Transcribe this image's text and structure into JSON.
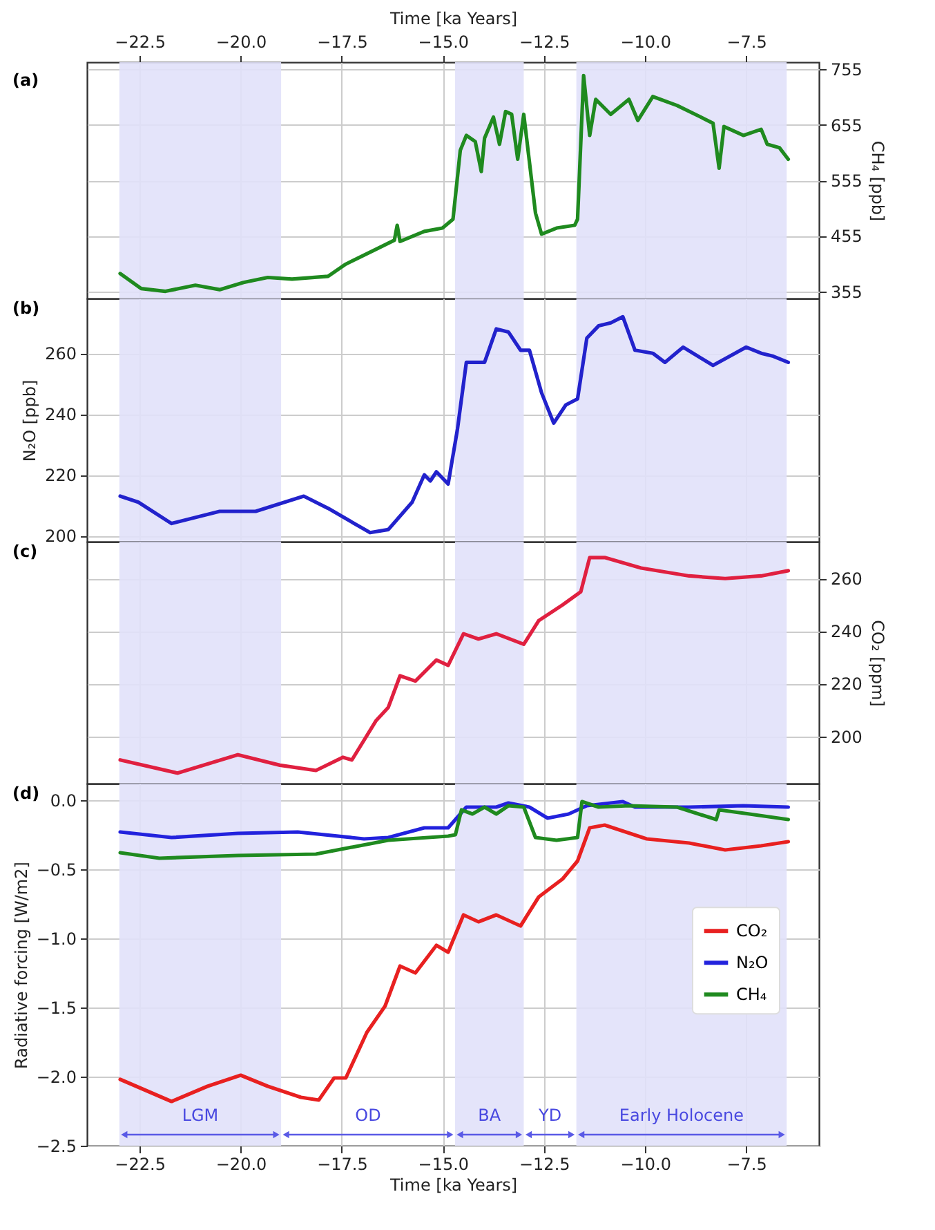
{
  "chart_data": [
    {
      "type": "line",
      "title": "(a)",
      "xlabel": "Time [ka Years]",
      "xlim": [
        -23.8,
        -5.7
      ],
      "xticks": [
        {
          "value": -22.5,
          "label": "−22.5"
        },
        {
          "value": -20,
          "label": "−20.0"
        },
        {
          "value": -17.5,
          "label": "−17.5"
        },
        {
          "value": -15,
          "label": "−15.0"
        },
        {
          "value": -12.5,
          "label": "−12.5"
        },
        {
          "value": -10,
          "label": "−10.0"
        },
        {
          "value": -7.5,
          "label": "−7.5"
        }
      ],
      "ylabel": "CH₄ [ppb]",
      "ylim": [
        342,
        768
      ],
      "yticks": [
        355,
        455,
        555,
        655,
        755
      ],
      "grid": true,
      "bands": [
        {
          "axis": "x",
          "from": -23,
          "to": -19,
          "color": "#e1e1fa"
        },
        {
          "axis": "x",
          "from": -14.7,
          "to": -13,
          "color": "#e1e1fa"
        },
        {
          "axis": "x",
          "from": -11.7,
          "to": -6.5,
          "color": "#e1e1fa"
        }
      ],
      "x": [
        -22.98,
        -22.46,
        -21.86,
        -21.12,
        -20.52,
        -19.93,
        -19.33,
        -18.73,
        -17.84,
        -17.4,
        -16.65,
        -16.2,
        -16.13,
        -16.06,
        -15.46,
        -15.01,
        -14.75,
        -14.57,
        -14.42,
        -14.2,
        -14.05,
        -13.97,
        -13.75,
        -13.6,
        -13.45,
        -13.3,
        -13.15,
        -13.0,
        -12.71,
        -12.56,
        -12.19,
        -11.74,
        -11.67,
        -11.52,
        -11.37,
        -11.22,
        -10.85,
        -10.4,
        -10.18,
        -9.81,
        -9.21,
        -8.62,
        -8.32,
        -8.17,
        -8.05,
        -7.57,
        -7.13,
        -6.98,
        -6.68,
        -6.46
      ],
      "series": [
        {
          "color": "#1f8a1f",
          "values": [
            387,
            360,
            355,
            366,
            358,
            371,
            380,
            377,
            382,
            404,
            431,
            447,
            474,
            445,
            463,
            469,
            485,
            609,
            636,
            625,
            571,
            631,
            669,
            620,
            679,
            674,
            593,
            674,
            496,
            458,
            469,
            474,
            485,
            744,
            636,
            701,
            674,
            701,
            663,
            706,
            690,
            669,
            658,
            577,
            652,
            636,
            647,
            620,
            614,
            593
          ]
        }
      ]
    },
    {
      "type": "line",
      "title": "(b)",
      "ylabel": "N₂O [ppb]",
      "xlim": [
        -23.8,
        -5.7
      ],
      "xticks": [
        -22.5,
        -20,
        -17.5,
        -15,
        -12.5,
        -10,
        -7.5
      ],
      "ylim": [
        198,
        278
      ],
      "yticks": [
        200,
        220,
        240,
        260
      ],
      "grid": true,
      "tick_labels": "y",
      "bands": [
        {
          "axis": "x",
          "from": -23,
          "to": -19,
          "color": "#e1e1fa"
        },
        {
          "axis": "x",
          "from": -14.7,
          "to": -13,
          "color": "#e1e1fa"
        },
        {
          "axis": "x",
          "from": -11.7,
          "to": -6.5,
          "color": "#e1e1fa"
        }
      ],
      "x": [
        -22.98,
        -22.53,
        -21.71,
        -20.52,
        -19.63,
        -18.44,
        -17.84,
        -16.8,
        -16.35,
        -15.76,
        -15.46,
        -15.31,
        -15.16,
        -14.87,
        -14.64,
        -14.42,
        -14.2,
        -13.97,
        -13.68,
        -13.38,
        -13.08,
        -12.86,
        -12.56,
        -12.26,
        -11.96,
        -11.67,
        -11.44,
        -11.15,
        -10.85,
        -10.55,
        -10.25,
        -9.81,
        -9.51,
        -9.06,
        -8.32,
        -7.5,
        -7.13,
        -6.83,
        -6.46
      ],
      "series": [
        {
          "color": "#2222cc",
          "values": [
            213,
            211,
            204,
            208,
            208,
            213,
            209,
            201,
            202,
            211,
            220,
            218,
            221,
            217,
            235,
            257,
            257,
            257,
            268,
            267,
            261,
            261,
            247,
            237,
            243,
            245,
            265,
            269,
            270,
            272,
            261,
            260,
            257,
            262,
            256,
            262,
            260,
            259,
            257
          ]
        }
      ]
    },
    {
      "type": "line",
      "title": "(c)",
      "ylabel": "CO₂ [ppm]",
      "xlim": [
        -23.8,
        -5.7
      ],
      "xticks": [
        -22.5,
        -20,
        -17.5,
        -15,
        -12.5,
        -10,
        -7.5
      ],
      "ylim": [
        182,
        274
      ],
      "yticks": [
        200,
        220,
        240,
        260
      ],
      "grid": true,
      "tick_labels": "y",
      "bands": [
        {
          "axis": "x",
          "from": -23,
          "to": -19,
          "color": "#e1e1fa"
        },
        {
          "axis": "x",
          "from": -14.7,
          "to": -13,
          "color": "#e1e1fa"
        },
        {
          "axis": "x",
          "from": -11.7,
          "to": -6.5,
          "color": "#e1e1fa"
        }
      ],
      "x": [
        -22.98,
        -21.56,
        -20.07,
        -19.03,
        -18.14,
        -17.47,
        -17.25,
        -16.65,
        -16.35,
        -16.06,
        -15.68,
        -15.16,
        -14.87,
        -14.49,
        -14.12,
        -13.68,
        -13.0,
        -12.63,
        -12.04,
        -11.59,
        -11.37,
        -11.0,
        -10.1,
        -8.91,
        -8.02,
        -7.13,
        -6.46
      ],
      "series": [
        {
          "color": "#e02040",
          "values": [
            191,
            186,
            193,
            189,
            187,
            192,
            191,
            206,
            211,
            223,
            221,
            229,
            227,
            239,
            237,
            239,
            235,
            244,
            250,
            255,
            268,
            268,
            264,
            261,
            260,
            261,
            263
          ]
        }
      ]
    },
    {
      "type": "line",
      "title": "(d)",
      "xlabel": "Time [ka Years]",
      "ylabel": "Radiative forcing [W/m2]",
      "xlim": [
        -23.8,
        -5.7
      ],
      "xticks": [
        {
          "value": -22.5,
          "label": "−22.5"
        },
        {
          "value": -20,
          "label": "−20.0"
        },
        {
          "value": -17.5,
          "label": "−17.5"
        },
        {
          "value": -15,
          "label": "−15.0"
        },
        {
          "value": -12.5,
          "label": "−12.5"
        },
        {
          "value": -10,
          "label": "−10.0"
        },
        {
          "value": -7.5,
          "label": "−7.5"
        }
      ],
      "ylim": [
        -2.5,
        0.12
      ],
      "yticks": [
        {
          "value": 0,
          "label": "0.0"
        },
        {
          "value": -0.5,
          "label": "−0.5"
        },
        {
          "value": -1,
          "label": "−1.0"
        },
        {
          "value": -1.5,
          "label": "−1.5"
        },
        {
          "value": -2,
          "label": "−2.0"
        },
        {
          "value": -2.5,
          "label": "−2.5"
        }
      ],
      "grid": true,
      "legend": "right",
      "bands": [
        {
          "axis": "x",
          "from": -23,
          "to": -19,
          "color": "#e1e1fa"
        },
        {
          "axis": "x",
          "from": -14.7,
          "to": -13,
          "color": "#e1e1fa"
        },
        {
          "axis": "x",
          "from": -11.7,
          "to": -6.5,
          "color": "#e1e1fa"
        }
      ],
      "annotations": [
        "LGM",
        "OD",
        "BA",
        "YD",
        "Early Holocene"
      ],
      "series": [
        {
          "name": "CO₂",
          "color": "#e82020",
          "x": [
            -22.98,
            -21.71,
            -20.82,
            -20.0,
            -19.33,
            -18.51,
            -18.07,
            -17.69,
            -17.4,
            -16.88,
            -16.43,
            -16.06,
            -15.68,
            -15.16,
            -14.87,
            -14.49,
            -14.12,
            -13.68,
            -13.08,
            -12.63,
            -12.04,
            -11.67,
            -11.37,
            -11.0,
            -9.96,
            -8.91,
            -8.02,
            -7.13,
            -6.46
          ],
          "values": [
            -2.02,
            -2.18,
            -2.07,
            -1.99,
            -2.07,
            -2.15,
            -2.17,
            -2.01,
            -2.01,
            -1.68,
            -1.49,
            -1.2,
            -1.25,
            -1.05,
            -1.1,
            -0.83,
            -0.88,
            -0.83,
            -0.91,
            -0.7,
            -0.57,
            -0.44,
            -0.2,
            -0.18,
            -0.28,
            -0.31,
            -0.36,
            -0.33,
            -0.3
          ]
        },
        {
          "name": "N₂O",
          "color": "#2222dd",
          "x": [
            -22.98,
            -21.71,
            -20.07,
            -18.59,
            -16.95,
            -16.35,
            -15.46,
            -14.87,
            -14.42,
            -13.68,
            -13.38,
            -12.86,
            -12.41,
            -11.89,
            -11.44,
            -10.55,
            -10.25,
            -8.91,
            -7.57,
            -6.46
          ],
          "values": [
            -0.23,
            -0.27,
            -0.24,
            -0.23,
            -0.28,
            -0.27,
            -0.2,
            -0.2,
            -0.05,
            -0.05,
            -0.02,
            -0.05,
            -0.13,
            -0.1,
            -0.04,
            -0.01,
            -0.05,
            -0.05,
            -0.04,
            -0.05
          ]
        },
        {
          "name": "CH₄",
          "color": "#1f8a1f",
          "x": [
            -22.98,
            -22.01,
            -20.07,
            -18.14,
            -16.35,
            -14.87,
            -14.69,
            -14.54,
            -14.27,
            -13.97,
            -13.68,
            -13.38,
            -13.0,
            -12.71,
            -12.19,
            -11.67,
            -11.56,
            -11.15,
            -10.4,
            -9.21,
            -8.24,
            -8.17,
            -7.42,
            -6.46
          ],
          "values": [
            -0.38,
            -0.42,
            -0.4,
            -0.39,
            -0.29,
            -0.26,
            -0.25,
            -0.07,
            -0.1,
            -0.05,
            -0.1,
            -0.04,
            -0.05,
            -0.27,
            -0.29,
            -0.27,
            -0.01,
            -0.05,
            -0.04,
            -0.05,
            -0.14,
            -0.07,
            -0.1,
            -0.14
          ]
        }
      ]
    }
  ]
}
